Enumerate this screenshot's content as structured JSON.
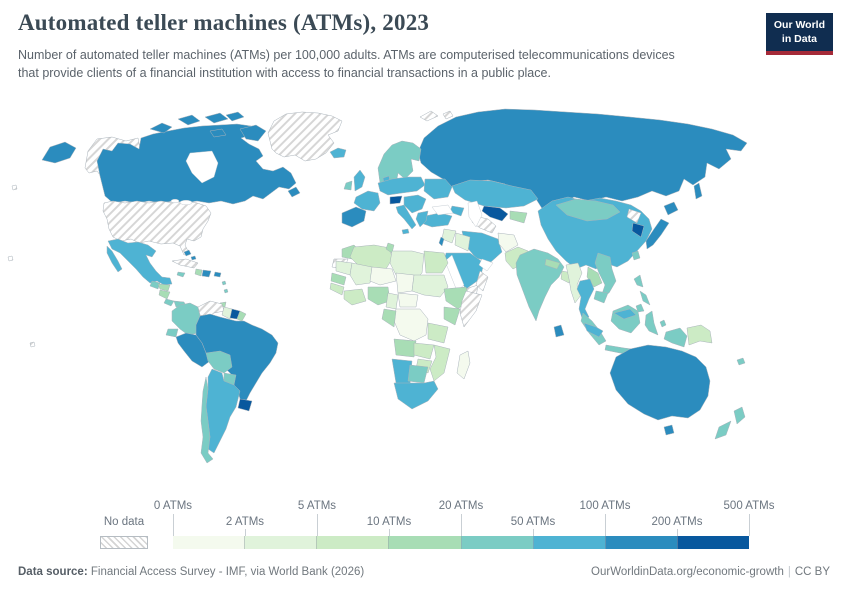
{
  "header": {
    "title": "Automated teller machines (ATMs), 2023",
    "subtitle": "Number of automated teller machines (ATMs) per 100,000 adults. ATMs are computerised telecommunications devices that provide clients of a financial institution with access to financial transactions in a public place.",
    "logo": {
      "line1": "Our World",
      "line2": "in Data",
      "bg": "#102d50",
      "accent": "#a52a38"
    }
  },
  "legend": {
    "no_data_label": "No data",
    "tick_labels": [
      "0 ATMs",
      "2 ATMs",
      "5 ATMs",
      "10 ATMs",
      "20 ATMs",
      "50 ATMs",
      "100 ATMs",
      "200 ATMs",
      "500 ATMs"
    ],
    "bin_colors": [
      "#f4faee",
      "#e0f3db",
      "#ccebc5",
      "#a8ddb5",
      "#7bccc4",
      "#4eb3d3",
      "#2b8cbe",
      "#08589e"
    ]
  },
  "footer": {
    "datasource_label": "Data source:",
    "datasource_text": " Financial Access Survey - IMF, via World Bank (2026)",
    "url": "OurWorldinData.org/economic-growth",
    "separator": "|",
    "license": "CC BY"
  },
  "chart_data": {
    "type": "choropleth",
    "title": "Automated teller machines (ATMs), 2023",
    "metric": "ATMs per 100,000 adults",
    "year": 2023,
    "bin_keys": [
      "0–2",
      "2–5",
      "5–10",
      "10–20",
      "20–50",
      "50–100",
      "100–200",
      "200–500"
    ],
    "bin_edges": [
      0,
      2,
      5,
      10,
      20,
      50,
      100,
      200,
      500
    ],
    "no_data_key": "no-data",
    "regions": {
      "united-states": "no-data",
      "canada": "100–200",
      "greenland": "no-data",
      "iceland": "50–100",
      "mexico": "50–100",
      "guatemala": "20–50",
      "honduras": "10–20",
      "nicaragua": "10–20",
      "costa-rica": "20–50",
      "panama": "20–50",
      "cuba": "no-data",
      "jamaica": "20–50",
      "haiti": "10–20",
      "dominican-republic": "100–200",
      "puerto-rico": "100–200",
      "bahamas": "100–200",
      "caribbean-islands": "20–50",
      "trinidad-and-tobago": "10–20",
      "colombia": "20–50",
      "venezuela": "no-data",
      "guyana": "2–5",
      "suriname": "200–500",
      "french-guiana": "10–20",
      "ecuador": "20–50",
      "peru": "100–200",
      "brazil": "100–200",
      "bolivia": "20–50",
      "paraguay": "20–50",
      "chile": "20–50",
      "argentina": "50–100",
      "uruguay": "200–500",
      "united-kingdom": "50–100",
      "ireland": "20–50",
      "france": "50–100",
      "spain-portugal": "100–200",
      "central-europe": "50–100",
      "ukraine": "50–100",
      "balkans": "50–100",
      "italy": "50–100",
      "greece": "50–100",
      "austria": "200–500",
      "denmark": "50–100",
      "scandinavia": "20–50",
      "russia": "100–200",
      "turkey": "50–100",
      "caucasus": "50–100",
      "kazakhstan": "50–100",
      "uzbekistan": "200–500",
      "turkmenistan": "no-data",
      "kyrgyzstan-tajikistan": "10–20",
      "iran": "50–100",
      "iraq": "2–5",
      "syria-jordan": "2–5",
      "israel": "100–200",
      "saudi-arabia": "50–100",
      "yemen": "no-data",
      "oman": "no-data",
      "afghanistan": "0–2",
      "pakistan": "5–10",
      "india": "20–50",
      "nepal": "10–20",
      "bangladesh": "5–10",
      "sri-lanka": "100–200",
      "myanmar": "2–5",
      "thailand": "50–100",
      "laos": "10–20",
      "vietnam": "20–50",
      "cambodia": "20–50",
      "malaysia": "50–100",
      "indonesia": "20–50",
      "philippines": "20–50",
      "china": "50–100",
      "mongolia": "20–50",
      "north-korea": "no-data",
      "south-korea": "200–500",
      "japan": "100–200",
      "taiwan": "20–50",
      "morocco": "10–20",
      "western-sahara": "no-data",
      "algeria": "5–10",
      "tunisia": "10–20",
      "libya": "2–5",
      "egypt": "5–10",
      "mauritania": "2–5",
      "mali": "2–5",
      "niger": "0–2",
      "chad": "0–2",
      "sudan": "2–5",
      "senegal": "10–20",
      "guinea": "5–10",
      "ivory-coast-ghana": "5–10",
      "nigeria": "10–20",
      "cameroon": "2–5",
      "central-african-republic": "0–2",
      "ethiopia": "10–20",
      "somalia": "no-data",
      "kenya": "10–20",
      "dr-congo": "0–2",
      "gabon-congo": "10–20",
      "tanzania": "5–10",
      "angola": "10–20",
      "zambia": "5–10",
      "mozambique": "5–10",
      "zimbabwe": "5–10",
      "namibia": "50–100",
      "botswana": "20–50",
      "south-africa": "50–100",
      "madagascar": "0–2",
      "australia": "100–200",
      "new-zealand": "20–50",
      "papua-new-guinea": "5–10",
      "fiji": "20–50",
      "svalbard": "no-data",
      "pacific-territories": "no-data"
    }
  }
}
